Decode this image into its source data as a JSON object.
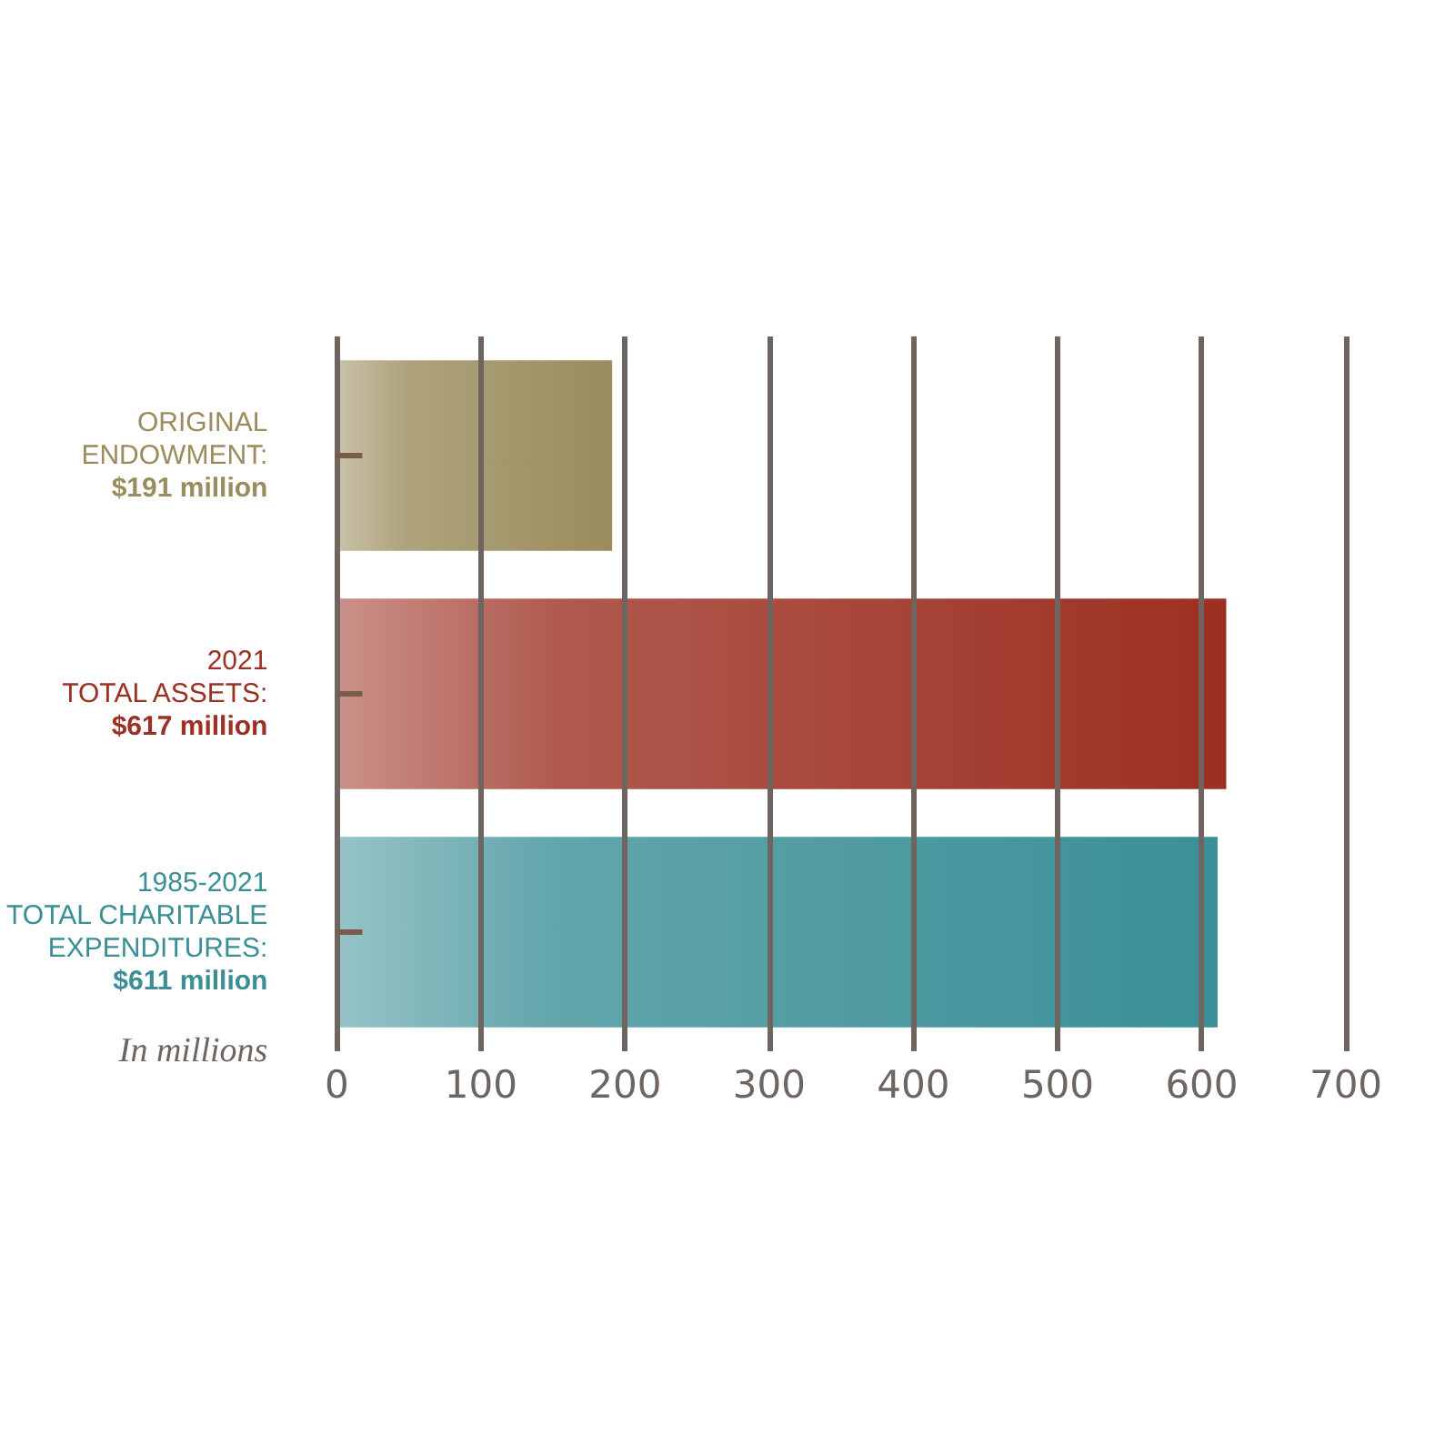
{
  "chart_data": {
    "type": "bar",
    "orientation": "horizontal",
    "xlabel": "In millions",
    "categories": [
      "ORIGINAL\nENDOWMENT:\n$191 million",
      "2021\nTOTAL ASSETS:\n$617 million",
      "1985-2021\nTOTAL CHARITABLE\nEXPENDITURES:\n$611 million"
    ],
    "values": [
      191,
      617,
      611
    ],
    "colors": [
      "#9a8c5c",
      "#9c3022",
      "#3a8f96"
    ],
    "xlim": [
      0,
      700
    ],
    "xticks": [
      0,
      100,
      200,
      300,
      400,
      500,
      600,
      700
    ],
    "grid": "x"
  }
}
